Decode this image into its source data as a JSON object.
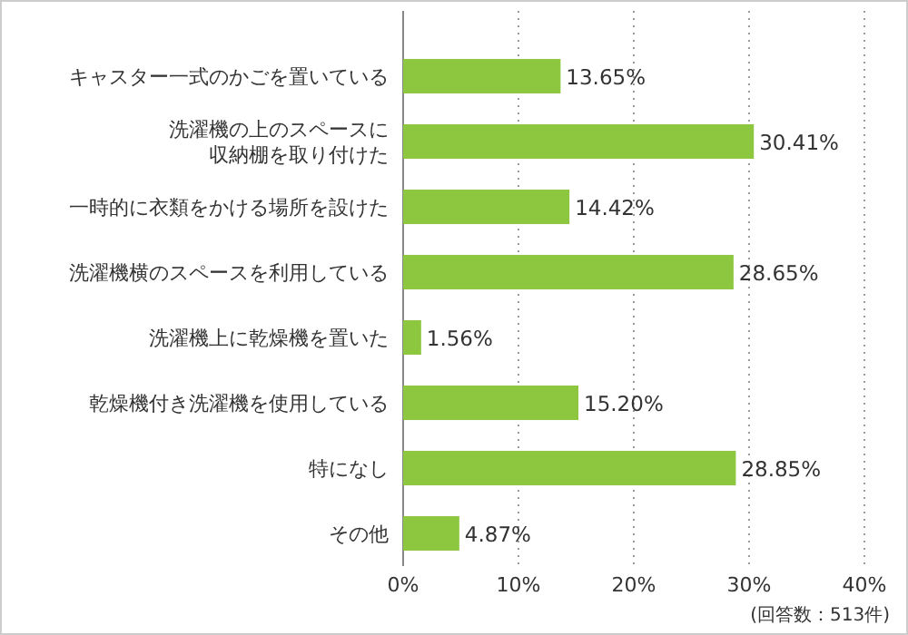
{
  "chart_data": {
    "type": "bar",
    "orientation": "horizontal",
    "categories": [
      "キャスター一式のかごを置いている",
      "洗濯機の上のスペースに収納棚を取り付けた",
      "一時的に衣類をかける場所を設けた",
      "洗濯機横のスペースを利用している",
      "洗濯機上に乾燥機を置いた",
      "乾燥機付き洗濯機を使用している",
      "特になし",
      "その他"
    ],
    "values": [
      13.65,
      30.41,
      14.42,
      28.65,
      1.56,
      15.2,
      28.85,
      4.87
    ],
    "value_labels": [
      "13.65%",
      "30.41%",
      "14.42%",
      "28.65%",
      "1.56%",
      "15.20%",
      "28.85%",
      "4.87%"
    ],
    "color": "#8dc63f",
    "xlim": [
      0,
      40
    ],
    "xticks": [
      {
        "value": 0,
        "label": "0%"
      },
      {
        "value": 10,
        "label": "10%"
      },
      {
        "value": 20,
        "label": "20%"
      },
      {
        "value": 30,
        "label": "30%"
      },
      {
        "value": 40,
        "label": "40%"
      }
    ],
    "grid": "x",
    "annotations": [
      "(回答数：513件)"
    ]
  }
}
